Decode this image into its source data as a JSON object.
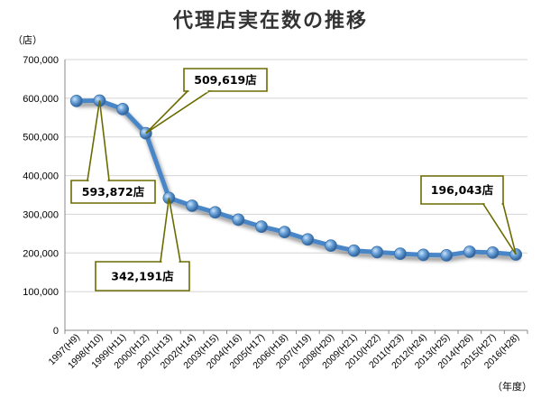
{
  "chart_data": {
    "type": "line",
    "title": "代理店実在数の推移",
    "ylabel": "（店）",
    "xlabel": "（年度）",
    "ylim": [
      0,
      700000
    ],
    "yticks": [
      "0",
      "100,000",
      "200,000",
      "300,000",
      "400,000",
      "500,000",
      "600,000",
      "700,000"
    ],
    "grid": true,
    "categories": [
      "1997(H9)",
      "1998(H10)",
      "1999(H11)",
      "2000(H12)",
      "2001(H13)",
      "2002(H14)",
      "2003(H15)",
      "2004(H16)",
      "2005(H17)",
      "2006(H18)",
      "2007(H19)",
      "2008(H20)",
      "2009(H21)",
      "2010(H22)",
      "2011(H23)",
      "2012(H24)",
      "2013(H25)",
      "2014(H26)",
      "2015(H27)",
      "2016(H28)"
    ],
    "series": [
      {
        "name": "",
        "values": [
          593000,
          593872,
          572000,
          509619,
          342191,
          322000,
          305000,
          286000,
          268000,
          254000,
          235000,
          219000,
          206000,
          202000,
          198000,
          195000,
          194000,
          203000,
          201000,
          196043
        ]
      }
    ],
    "annotations": [
      {
        "label": "509,619店",
        "index": 3
      },
      {
        "label": "593,872店",
        "index": 1
      },
      {
        "label": "342,191店",
        "index": 4
      },
      {
        "label": "196,043店",
        "index": 19
      }
    ],
    "colors": {
      "line": "#4a86c8",
      "marker": "#5b9bd5",
      "callout_border": "#6b6b00",
      "grid": "#d4d4d4"
    }
  }
}
